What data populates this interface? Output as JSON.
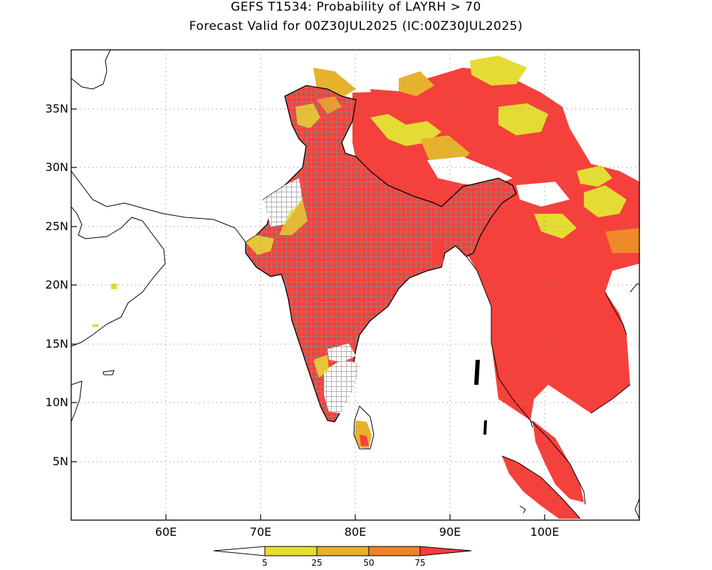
{
  "title": {
    "line1": "GEFS T1534: Probability of LAYRH > 70",
    "line2": "Forecast Valid for 00Z30JUL2025 (IC:00Z30JUL2025)"
  },
  "axes": {
    "lat_labels": [
      "35N",
      "30N",
      "25N",
      "20N",
      "15N",
      "10N",
      "5N"
    ],
    "lon_labels": [
      "60E",
      "70E",
      "80E",
      "90E",
      "100E"
    ]
  },
  "colorbar": {
    "labels": [
      "5",
      "25",
      "50",
      "75"
    ],
    "colors": [
      "#ffffff",
      "#e6dc32",
      "#e6af2d",
      "#f08228",
      "#fa3c3c"
    ]
  },
  "colors": {
    "red": "#f5413c",
    "orange": "#ee8a2a",
    "gold": "#e6b22e",
    "yellow": "#e4dc34"
  }
}
